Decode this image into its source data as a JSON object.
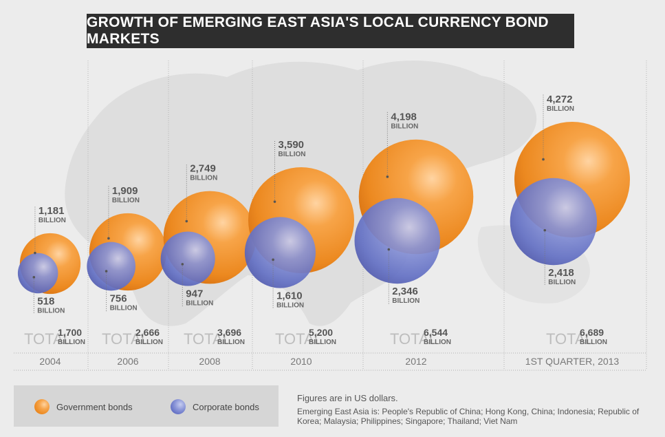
{
  "title": "GROWTH OF EMERGING EAST ASIA'S LOCAL CURRENCY BOND MARKETS",
  "chart_data": {
    "type": "bubble",
    "unit": "BILLION",
    "total_label": "TOTAL",
    "categories": [
      "2004",
      "2006",
      "2008",
      "2010",
      "2012",
      "1ST QUARTER, 2013"
    ],
    "series": [
      {
        "name": "Government bonds",
        "values": [
          "1,181",
          "1,909",
          "2,749",
          "3,590",
          "4,198",
          "4,272"
        ]
      },
      {
        "name": "Corporate bonds",
        "values": [
          "518",
          "756",
          "947",
          "1,610",
          "2,346",
          "2,418"
        ]
      }
    ],
    "totals": [
      "1,700",
      "2,666",
      "3,696",
      "5,200",
      "6,544",
      "6,689"
    ]
  },
  "legend": {
    "government": "Government bonds",
    "corporate": "Corporate bonds"
  },
  "notes": {
    "currency": "Figures are in US dollars.",
    "definition": "Emerging East Asia is: People's Republic of China;  Hong Kong, China; Indonesia; Republic of Korea; Malaysia; Philippines; Singapore; Thailand; Viet Nam"
  },
  "colors": {
    "government": "#f08f2a",
    "corporate": "#6a76c8",
    "title_bg": "#2e2e2e"
  }
}
